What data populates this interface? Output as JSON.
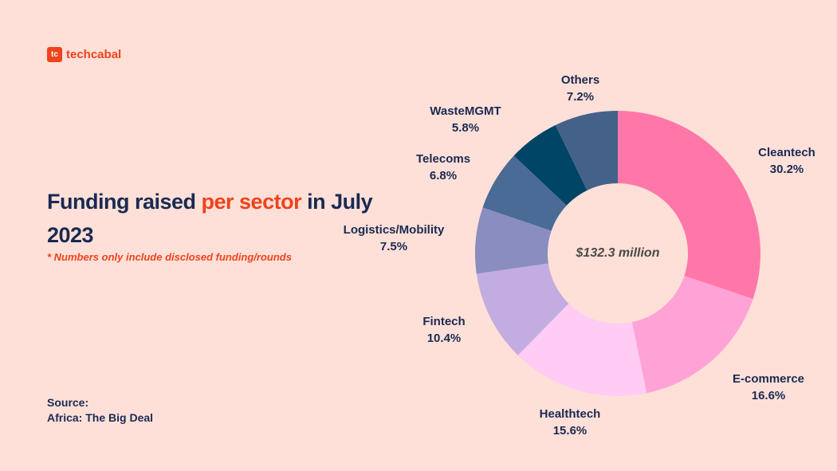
{
  "brand": {
    "name": "techcabal",
    "mark": "tc",
    "color": "#f0421c"
  },
  "title": {
    "part1": "Funding raised ",
    "highlight": "per sector",
    "part2": " in July 2023"
  },
  "note": "* Numbers only include disclosed funding/rounds",
  "source": {
    "label": "Source:",
    "value": "Africa: The Big Deal"
  },
  "chart_data": {
    "type": "pie",
    "donut": true,
    "center_label": "$132.3 million",
    "categories": [
      "Cleantech",
      "E-commerce",
      "Healthtech",
      "Fintech",
      "Logistics/Mobility",
      "Telecoms",
      "WasteMGMT",
      "Others"
    ],
    "values": [
      30.2,
      16.6,
      15.6,
      10.4,
      7.5,
      6.8,
      5.8,
      7.2
    ],
    "labels": [
      "30.2%",
      "16.6%",
      "15.6%",
      "10.4%",
      "7.5%",
      "6.8%",
      "5.8%",
      "7.2%"
    ],
    "colors": [
      "#ff77a8",
      "#ffa3d6",
      "#ffccf5",
      "#c3ade0",
      "#8a8dbf",
      "#4a6b95",
      "#004466",
      "#44618a"
    ]
  }
}
